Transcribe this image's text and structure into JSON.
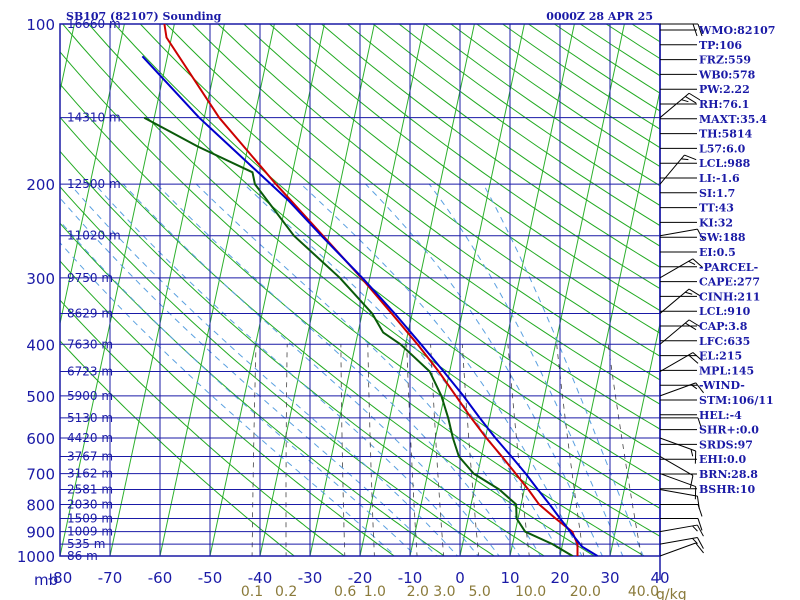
{
  "header": {
    "station": "SB107 (82107) Sounding",
    "valid": "0000Z 28 APR 25"
  },
  "axes": {
    "pressure_unit": "mb",
    "mixing_ratio_unit": "g/kg"
  },
  "indices": [
    "WMO:82107",
    "TP:106",
    "FRZ:559",
    "WB0:578",
    "PW:2.22",
    "RH:76.1",
    "MAXT:35.4",
    "TH:5814",
    "L57:6.0",
    "LCL:988",
    "LI:-1.6",
    "SI:1.7",
    "TT:43",
    "KI:32",
    "SW:188",
    "EI:0.5",
    "-PARCEL-",
    "CAPE:277",
    "CINH:211",
    "LCL:910",
    "CAP:3.8",
    "LFC:635",
    "EL:215",
    "MPL:145",
    "-WIND-",
    "STM:106/11",
    "HEL:-4",
    "SHR+:0.0",
    "SRDS:97",
    "EHI:0.0",
    "BRN:28.8",
    "BSHR:10"
  ],
  "colors": {
    "grid": "#1a1aa6",
    "dry_adiabat": "#22aa22",
    "moist_adiabat": "#5aa0e0",
    "mixing_ratio": "#444444",
    "temperature": "#cc0000",
    "dewpoint": "#0a5a0a",
    "parcel": "#0000cc",
    "wind": "#000000"
  },
  "chart_data": {
    "type": "skew-t log-p",
    "pressure_ticks": [
      100,
      200,
      300,
      400,
      500,
      600,
      700,
      800,
      900,
      1000
    ],
    "temperature_ticks": [
      -80,
      -70,
      -60,
      -50,
      -40,
      -30,
      -20,
      -10,
      0,
      10,
      20,
      30,
      40
    ],
    "temperature_tick_labels": [
      "-80",
      "-70",
      "-60",
      "-50",
      "-40",
      "-30",
      "-20",
      "-10",
      "0",
      "10",
      "20",
      "30",
      "40"
    ],
    "mixing_ratio_labels": [
      "0.1",
      "0.2",
      "0.6",
      "1.0",
      "2.0",
      "3.0",
      "5.0",
      "10.0",
      "20.0",
      "40.0"
    ],
    "mixing_ratio_values": [
      0.1,
      0.2,
      0.6,
      1.0,
      2.0,
      3.0,
      5.0,
      10.0,
      20.0,
      40.0
    ],
    "height_levels": [
      {
        "p": 100,
        "label": "16660 m"
      },
      {
        "p": 150,
        "label": "14310 m"
      },
      {
        "p": 200,
        "label": "12500 m"
      },
      {
        "p": 250,
        "label": "11020 m"
      },
      {
        "p": 300,
        "label": "9750 m"
      },
      {
        "p": 350,
        "label": "8629 m"
      },
      {
        "p": 400,
        "label": "7630 m"
      },
      {
        "p": 450,
        "label": "6723 m"
      },
      {
        "p": 500,
        "label": "5900 m"
      },
      {
        "p": 550,
        "label": "5130 m"
      },
      {
        "p": 600,
        "label": "4420 m"
      },
      {
        "p": 650,
        "label": "3767 m"
      },
      {
        "p": 700,
        "label": "3162 m"
      },
      {
        "p": 750,
        "label": "2581 m"
      },
      {
        "p": 800,
        "label": "2030 m"
      },
      {
        "p": 850,
        "label": "1509 m"
      },
      {
        "p": 900,
        "label": "1009 m"
      },
      {
        "p": 950,
        "label": "535 m"
      },
      {
        "p": 1000,
        "label": "86 m"
      }
    ],
    "temperature_profile": [
      {
        "p": 1009,
        "t": 23.6
      },
      {
        "p": 1000,
        "t": 23.5
      },
      {
        "p": 950,
        "t": 23.0
      },
      {
        "p": 900,
        "t": 21.4
      },
      {
        "p": 850,
        "t": 17.5
      },
      {
        "p": 800,
        "t": 13.6
      },
      {
        "p": 750,
        "t": 10.8
      },
      {
        "p": 700,
        "t": 7.6
      },
      {
        "p": 650,
        "t": 4.1
      },
      {
        "p": 600,
        "t": 0.2
      },
      {
        "p": 550,
        "t": -3.7
      },
      {
        "p": 500,
        "t": -7.7
      },
      {
        "p": 450,
        "t": -12.2
      },
      {
        "p": 400,
        "t": -17.6
      },
      {
        "p": 350,
        "t": -24.1
      },
      {
        "p": 300,
        "t": -31.7
      },
      {
        "p": 250,
        "t": -41.2
      },
      {
        "p": 200,
        "t": -52.8
      },
      {
        "p": 150,
        "t": -67.0
      },
      {
        "p": 106,
        "t": -81.0
      },
      {
        "p": 100,
        "t": -82.0
      }
    ],
    "dewpoint_profile": [
      {
        "p": 1009,
        "t": 22.8
      },
      {
        "p": 1000,
        "t": 22.5
      },
      {
        "p": 950,
        "t": 18.0
      },
      {
        "p": 900,
        "t": 12.0
      },
      {
        "p": 850,
        "t": 9.7
      },
      {
        "p": 800,
        "t": 9.0
      },
      {
        "p": 750,
        "t": 5.0
      },
      {
        "p": 700,
        "t": -0.8
      },
      {
        "p": 650,
        "t": -4.5
      },
      {
        "p": 600,
        "t": -6.5
      },
      {
        "p": 550,
        "t": -8.3
      },
      {
        "p": 500,
        "t": -10.6
      },
      {
        "p": 450,
        "t": -14.0
      },
      {
        "p": 400,
        "t": -21.0
      },
      {
        "p": 380,
        "t": -25.0
      },
      {
        "p": 350,
        "t": -28.0
      },
      {
        "p": 300,
        "t": -36.0
      },
      {
        "p": 250,
        "t": -47.0
      },
      {
        "p": 200,
        "t": -57.0
      },
      {
        "p": 190,
        "t": -58.0
      },
      {
        "p": 170,
        "t": -70.0
      },
      {
        "p": 150,
        "t": -82.0
      }
    ],
    "parcel_profile": [
      {
        "p": 1000,
        "t": 27.5
      },
      {
        "p": 960,
        "t": 24.0
      },
      {
        "p": 910,
        "t": 21.5
      },
      {
        "p": 850,
        "t": 18.4
      },
      {
        "p": 800,
        "t": 15.7
      },
      {
        "p": 750,
        "t": 12.7
      },
      {
        "p": 700,
        "t": 9.6
      },
      {
        "p": 650,
        "t": 6.0
      },
      {
        "p": 600,
        "t": 2.0
      },
      {
        "p": 550,
        "t": -2.0
      },
      {
        "p": 500,
        "t": -6.2
      },
      {
        "p": 450,
        "t": -11.2
      },
      {
        "p": 400,
        "t": -16.9
      },
      {
        "p": 350,
        "t": -23.5
      },
      {
        "p": 300,
        "t": -31.5
      },
      {
        "p": 250,
        "t": -41.5
      },
      {
        "p": 215,
        "t": -49.5
      },
      {
        "p": 150,
        "t": -71.0
      },
      {
        "p": 115,
        "t": -85.0
      }
    ],
    "wind_barbs": [
      {
        "p": 1000,
        "dir": 70,
        "spd": 10
      },
      {
        "p": 950,
        "dir": 80,
        "spd": 15
      },
      {
        "p": 900,
        "dir": 80,
        "spd": 15
      },
      {
        "p": 850,
        "dir": 90,
        "spd": 10
      },
      {
        "p": 800,
        "dir": 90,
        "spd": 10
      },
      {
        "p": 750,
        "dir": 100,
        "spd": 10
      },
      {
        "p": 700,
        "dir": 110,
        "spd": 10
      },
      {
        "p": 650,
        "dir": 120,
        "spd": 10
      },
      {
        "p": 600,
        "dir": 110,
        "spd": 15
      },
      {
        "p": 550,
        "dir": 90,
        "spd": 10
      },
      {
        "p": 500,
        "dir": 70,
        "spd": 15
      },
      {
        "p": 450,
        "dir": 60,
        "spd": 20
      },
      {
        "p": 400,
        "dir": 50,
        "spd": 20
      },
      {
        "p": 350,
        "dir": 50,
        "spd": 15
      },
      {
        "p": 300,
        "dir": 60,
        "spd": 15
      },
      {
        "p": 250,
        "dir": 80,
        "spd": 10
      },
      {
        "p": 200,
        "dir": 40,
        "spd": 15
      },
      {
        "p": 150,
        "dir": 50,
        "spd": 25
      },
      {
        "p": 100,
        "dir": 90,
        "spd": 20
      }
    ]
  }
}
